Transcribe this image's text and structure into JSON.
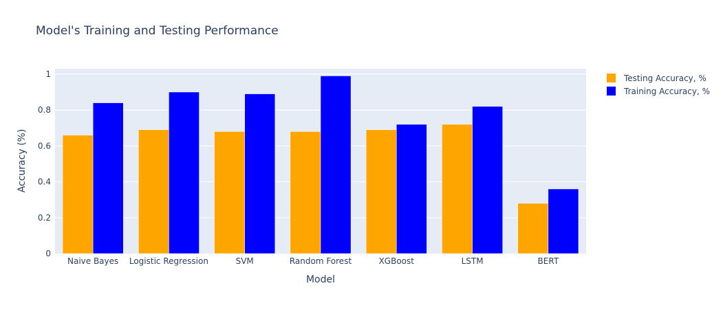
{
  "chart_data": {
    "type": "bar",
    "title": "Model's Training and Testing Performance",
    "xlabel": "Model",
    "ylabel": "Accuracy (%)",
    "categories": [
      "Naive Bayes",
      "Logistic Regression",
      "SVM",
      "Random Forest",
      "XGBoost",
      "LSTM",
      "BERT"
    ],
    "series": [
      {
        "name": "Testing Accuracy, %",
        "color": "#ffa500",
        "values": [
          0.66,
          0.69,
          0.68,
          0.68,
          0.69,
          0.72,
          0.28
        ]
      },
      {
        "name": "Training Accuracy, %",
        "color": "#0000ff",
        "values": [
          0.84,
          0.9,
          0.89,
          0.99,
          0.72,
          0.82,
          0.36
        ]
      }
    ],
    "ylim": [
      0,
      1.03
    ],
    "yticks": [
      0,
      0.2,
      0.4,
      0.6,
      0.8,
      1
    ],
    "ytick_labels": [
      "0",
      "0.2",
      "0.4",
      "0.6",
      "0.8",
      "1"
    ],
    "grid": true,
    "legend_position": "top-right",
    "plot_background": "#e5ecf6",
    "text_color": "#2a3f5f"
  }
}
